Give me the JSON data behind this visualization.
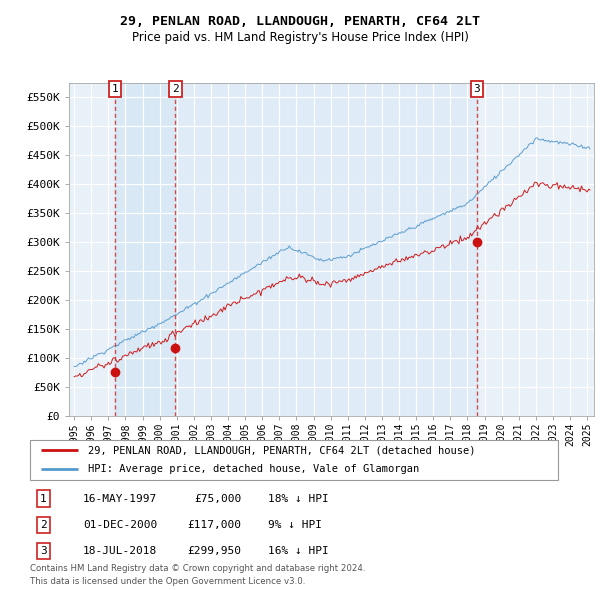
{
  "title": "29, PENLAN ROAD, LLANDOUGH, PENARTH, CF64 2LT",
  "subtitle": "Price paid vs. HM Land Registry's House Price Index (HPI)",
  "legend_line1": "29, PENLAN ROAD, LLANDOUGH, PENARTH, CF64 2LT (detached house)",
  "legend_line2": "HPI: Average price, detached house, Vale of Glamorgan",
  "transactions": [
    {
      "num": 1,
      "date": "16-MAY-1997",
      "price": 75000,
      "hpi_rel": "18% ↓ HPI",
      "x": 1997.37
    },
    {
      "num": 2,
      "date": "01-DEC-2000",
      "price": 117000,
      "hpi_rel": "9% ↓ HPI",
      "x": 2000.92
    },
    {
      "num": 3,
      "date": "18-JUL-2018",
      "price": 299950,
      "hpi_rel": "16% ↓ HPI",
      "x": 2018.54
    }
  ],
  "footer1": "Contains HM Land Registry data © Crown copyright and database right 2024.",
  "footer2": "This data is licensed under the Open Government Licence v3.0.",
  "hpi_color": "#5599cc",
  "price_color": "#cc1111",
  "dashed_color": "#cc3333",
  "shade_color": "#d8e8f5",
  "plot_bg": "#e8f0f8",
  "ylim": [
    0,
    575000
  ],
  "yticks": [
    0,
    50000,
    100000,
    150000,
    200000,
    250000,
    300000,
    350000,
    400000,
    450000,
    500000,
    550000
  ],
  "xlim_start": 1994.7,
  "xlim_end": 2025.4
}
